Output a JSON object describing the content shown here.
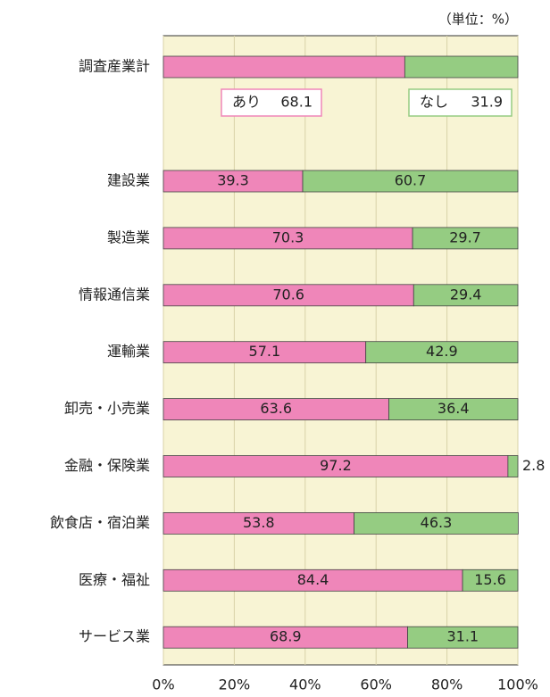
{
  "chart_data": {
    "type": "stacked-barh",
    "annotation": "（単位：%）",
    "categories": [
      "調査産業計",
      "建設業",
      "製造業",
      "情報通信業",
      "運輸業",
      "卸売・小売業",
      "金融・保険業",
      "飲食店・宿泊業",
      "医療・福祉",
      "サービス業"
    ],
    "series": [
      {
        "name": "あり",
        "color": "#ef86b9",
        "values": [
          68.1,
          39.3,
          70.3,
          70.6,
          57.1,
          63.6,
          97.2,
          53.8,
          84.4,
          68.9
        ]
      },
      {
        "name": "なし",
        "color": "#95cc82",
        "values": [
          31.9,
          60.7,
          29.7,
          29.4,
          42.9,
          36.4,
          2.8,
          46.3,
          15.6,
          31.1
        ]
      }
    ],
    "xlim": [
      0,
      100
    ],
    "xticks": [
      {
        "value": 0,
        "label": "0%"
      },
      {
        "value": 20,
        "label": "20%"
      },
      {
        "value": 40,
        "label": "40%"
      },
      {
        "value": 60,
        "label": "60%"
      },
      {
        "value": 80,
        "label": "80%"
      },
      {
        "value": 100,
        "label": "100%"
      }
    ],
    "grid": true
  }
}
